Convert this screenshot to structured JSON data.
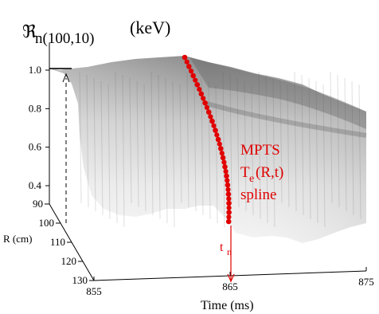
{
  "chart_data": {
    "type": "surface",
    "z_axis": {
      "label_symbol": "ℜ",
      "label_subscript": "n(100,10)",
      "label_unit": "(keV)",
      "ticks": [
        1.0,
        0.8,
        0.6,
        0.4
      ],
      "tick_labels": [
        "1.0",
        "0.8",
        "0.6",
        "0.4"
      ],
      "range": [
        0.3,
        1.1
      ]
    },
    "r_axis": {
      "label": "R (cm)",
      "ticks": [
        90,
        100,
        110,
        120,
        130
      ],
      "tick_labels": [
        "90",
        "100",
        "110",
        "120",
        "130"
      ],
      "range": [
        90,
        130
      ]
    },
    "time_axis": {
      "label": "Time (ms)",
      "ticks": [
        855,
        865,
        875
      ],
      "tick_labels": [
        "855",
        "865",
        "875"
      ],
      "range": [
        855,
        875
      ]
    },
    "annotations": {
      "overlay_lines": [
        "MPTS",
        "T",
        "e",
        "(R,t)",
        "spline"
      ],
      "marker_label": "t",
      "marker_subscript": "n",
      "color": "#e00000"
    },
    "spline_points": [
      {
        "R": 90,
        "Te": 1.04
      },
      {
        "R": 92,
        "Te": 1.02
      },
      {
        "R": 94,
        "Te": 1.0
      },
      {
        "R": 96,
        "Te": 0.97
      },
      {
        "R": 98,
        "Te": 0.94
      },
      {
        "R": 100,
        "Te": 0.9
      },
      {
        "R": 102,
        "Te": 0.86
      },
      {
        "R": 104,
        "Te": 0.82
      },
      {
        "R": 106,
        "Te": 0.77
      },
      {
        "R": 108,
        "Te": 0.72
      },
      {
        "R": 110,
        "Te": 0.67
      },
      {
        "R": 112,
        "Te": 0.62
      },
      {
        "R": 114,
        "Te": 0.57
      },
      {
        "R": 116,
        "Te": 0.52
      },
      {
        "R": 118,
        "Te": 0.47
      },
      {
        "R": 120,
        "Te": 0.42
      },
      {
        "R": 122,
        "Te": 0.38
      },
      {
        "R": 124,
        "Te": 0.34
      },
      {
        "R": 126,
        "Te": 0.31
      }
    ]
  }
}
